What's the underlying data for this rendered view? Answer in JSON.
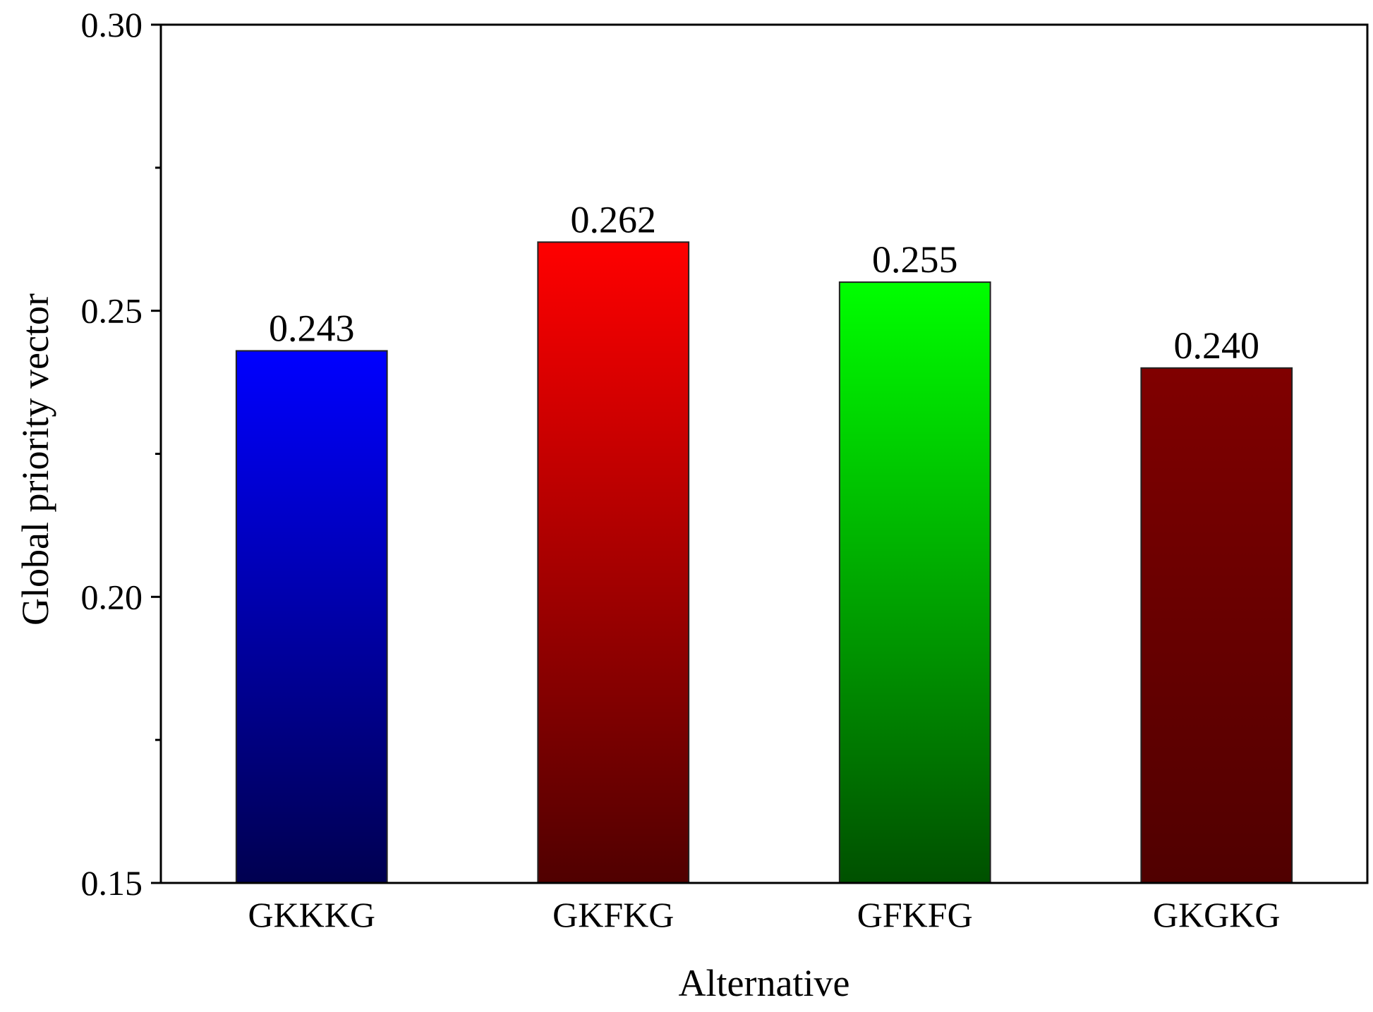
{
  "chart_data": {
    "type": "bar",
    "title": "",
    "xlabel": "Alternative",
    "ylabel": "Global priority vector",
    "ylim": [
      0.15,
      0.3
    ],
    "yticks": [
      0.15,
      0.2,
      0.25,
      0.3
    ],
    "ytick_labels": [
      "0.15",
      "0.20",
      "0.25",
      "0.30"
    ],
    "categories": [
      "GKKKG",
      "GKFKG",
      "GFKFG",
      "GKGKG"
    ],
    "values": [
      0.243,
      0.262,
      0.255,
      0.24
    ],
    "data_labels": [
      "0.243",
      "0.262",
      "0.255",
      "0.240"
    ],
    "grid": false,
    "bar_colors": [
      {
        "top": "#0000ff",
        "bottom": "#000050"
      },
      {
        "top": "#ff0000",
        "bottom": "#500000"
      },
      {
        "top": "#00ff00",
        "bottom": "#005000"
      },
      {
        "top": "#800000",
        "bottom": "#500000"
      }
    ]
  }
}
